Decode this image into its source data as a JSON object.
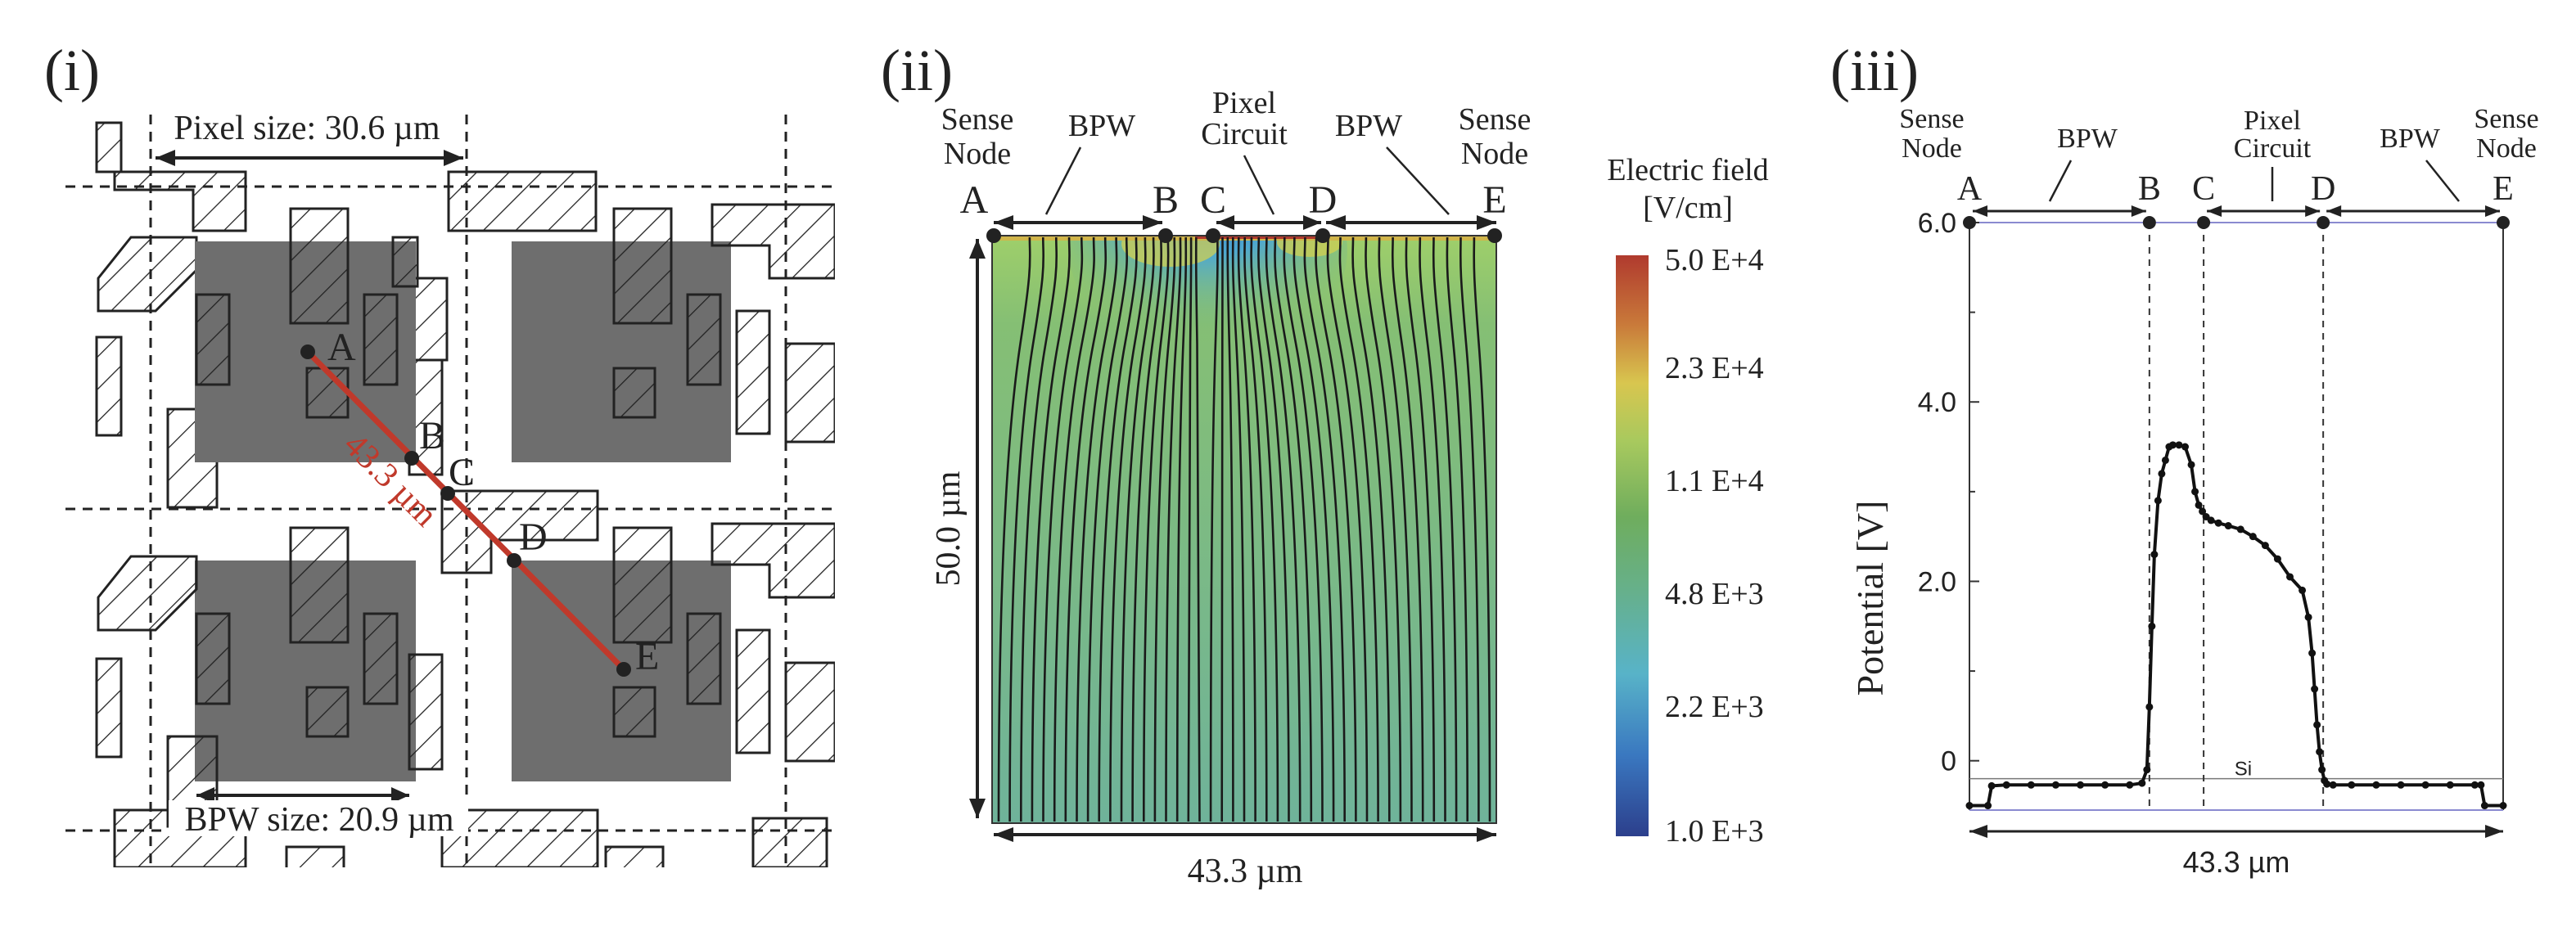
{
  "panel_i": {
    "label": "(i)",
    "pixel_size": "Pixel size: 30.6 µm",
    "bpw_size": "BPW size: 20.9 µm",
    "diag_len": "43.3 µm",
    "points": [
      "A",
      "B",
      "C",
      "D",
      "E"
    ],
    "line_color": "#c0392b",
    "gray_fill": "#6e6e6e"
  },
  "panel_ii": {
    "label": "(ii)",
    "top_labels": {
      "sense_left": [
        "Sense",
        "Node"
      ],
      "bpw_left": "BPW",
      "pixel_circuit": [
        "Pixel",
        "Circuit"
      ],
      "bpw_right": "BPW",
      "sense_right": [
        "Sense",
        "Node"
      ]
    },
    "points": [
      "A",
      "B",
      "C",
      "D",
      "E"
    ],
    "depth_label": "50.0 µm",
    "width_label": "43.3 µm",
    "colorbar_title": [
      "Electric field",
      "[V/cm]"
    ],
    "colorbar_ticks": [
      "5.0 E+4",
      "2.3 E+4",
      "1.1 E+4",
      "4.8 E+3",
      "2.2 E+3",
      "1.0 E+3"
    ],
    "colors": {
      "field_green": "#79b779",
      "high": "#b03a2e",
      "low": "#2c3f8c"
    }
  },
  "panel_iii": {
    "label": "(iii)",
    "top_labels": {
      "sense_left": [
        "Sense",
        "Node"
      ],
      "bpw_left": "BPW",
      "pixel_circuit": [
        "Pixel",
        "Circuit"
      ],
      "bpw_right": "BPW",
      "sense_right": [
        "Sense",
        "Node"
      ]
    },
    "points": [
      "A",
      "B",
      "C",
      "D",
      "E"
    ],
    "width_label": "43.3 µm",
    "si_label": "Si"
  },
  "chart_data": {
    "type": "line",
    "title": "",
    "xlabel": "43.3 µm",
    "ylabel": "Potential [V]",
    "xlim": [
      0,
      43.3
    ],
    "ylim": [
      -0.55,
      6.0
    ],
    "yticks": [
      0,
      2.0,
      4.0,
      6.0
    ],
    "ytick_labels": [
      "0",
      "2.0",
      "4.0",
      "6.0"
    ],
    "markers": {
      "A": 0,
      "B": 14.6,
      "C": 19.0,
      "D": 28.7,
      "E": 43.3
    },
    "series": [
      {
        "name": "Potential",
        "x": [
          0,
          1.5,
          1.8,
          3,
          5,
          7,
          9,
          11,
          13,
          14.0,
          14.4,
          14.6,
          14.8,
          15.0,
          15.3,
          15.6,
          15.9,
          16.2,
          16.5,
          17.0,
          17.5,
          18.0,
          18.3,
          18.6,
          18.9,
          19.2,
          19.6,
          20.2,
          21.0,
          22.0,
          23.0,
          24.0,
          25.0,
          26.0,
          27.0,
          27.5,
          27.8,
          28.0,
          28.2,
          28.4,
          28.6,
          28.8,
          29.0,
          29.5,
          31,
          33,
          35,
          37,
          39,
          41,
          41.5,
          41.8,
          43.3
        ],
        "values": [
          -0.5,
          -0.5,
          -0.28,
          -0.27,
          -0.27,
          -0.27,
          -0.27,
          -0.27,
          -0.27,
          -0.25,
          -0.1,
          0.6,
          1.5,
          2.3,
          2.9,
          3.2,
          3.35,
          3.5,
          3.52,
          3.52,
          3.5,
          3.3,
          3.0,
          2.85,
          2.78,
          2.72,
          2.68,
          2.65,
          2.62,
          2.58,
          2.5,
          2.4,
          2.25,
          2.05,
          1.9,
          1.6,
          1.2,
          0.8,
          0.4,
          0.1,
          -0.1,
          -0.22,
          -0.26,
          -0.27,
          -0.27,
          -0.27,
          -0.27,
          -0.27,
          -0.27,
          -0.27,
          -0.27,
          -0.5,
          -0.5
        ]
      }
    ]
  }
}
